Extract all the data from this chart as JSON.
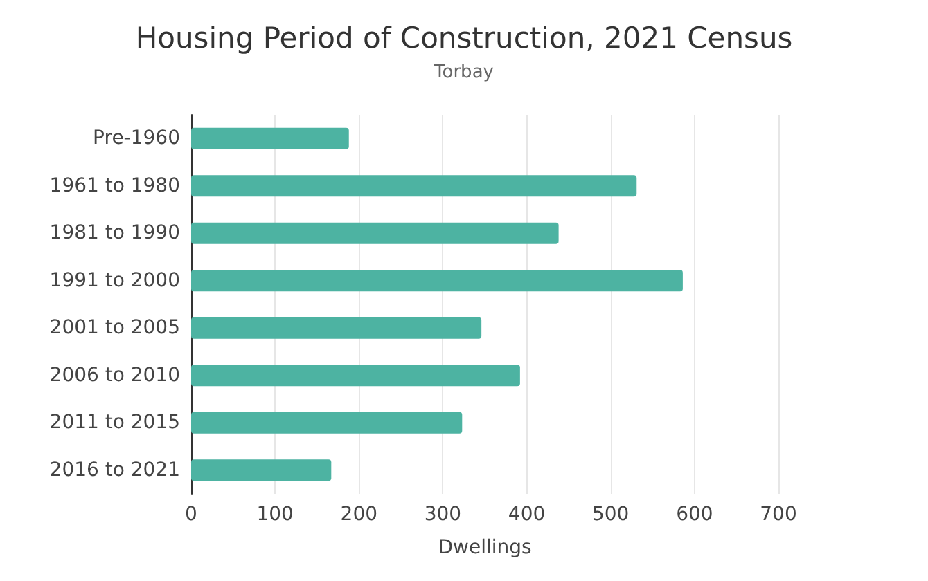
{
  "chart_data": {
    "type": "bar",
    "orientation": "horizontal",
    "title": "Housing Period of Construction, 2021 Census",
    "subtitle": "Torbay",
    "xlabel": "Dwellings",
    "categories": [
      "Pre-1960",
      "1961 to 1980",
      "1981 to 1990",
      "1991 to 2000",
      "2001 to 2005",
      "2006 to 2010",
      "2011 to 2015",
      "2016 to 2021"
    ],
    "values": [
      188,
      531,
      438,
      586,
      346,
      392,
      323,
      167
    ],
    "color": "#4db3a2",
    "xlim": [
      0,
      700
    ],
    "xticks": [
      0,
      100,
      200,
      300,
      400,
      500,
      600,
      700
    ],
    "grid": "x"
  }
}
